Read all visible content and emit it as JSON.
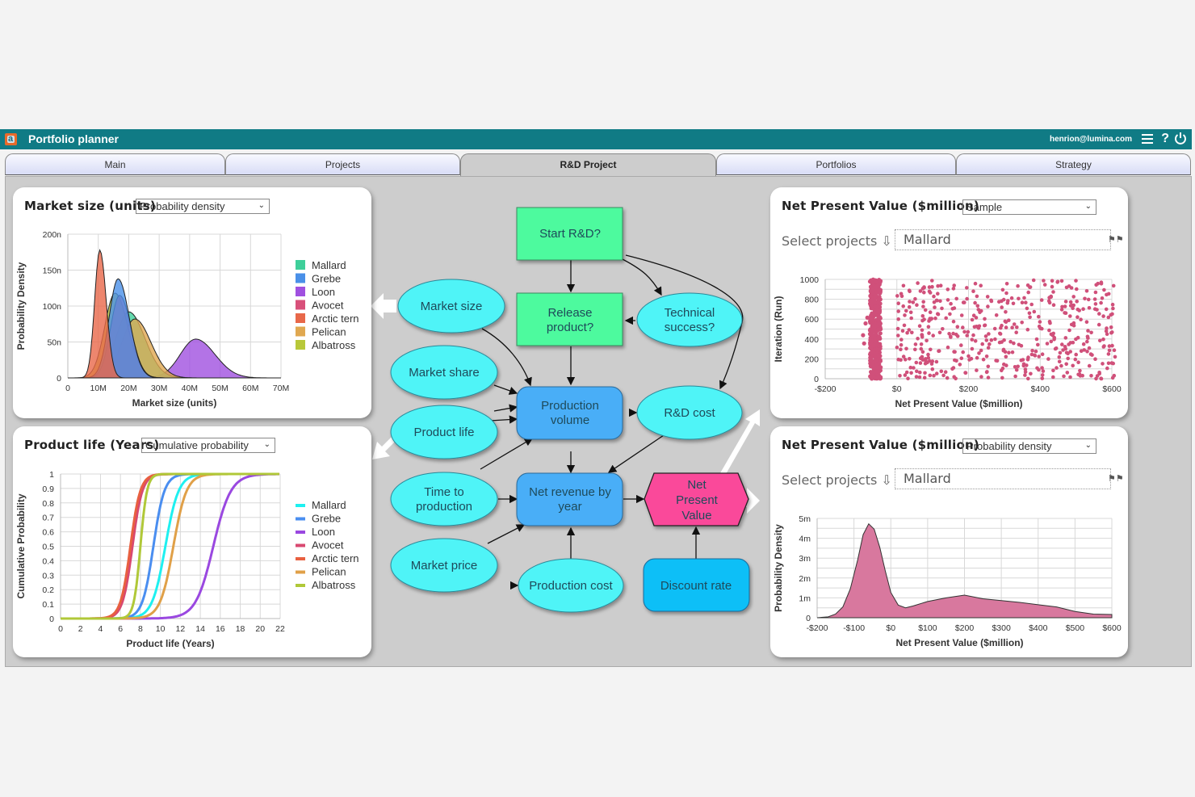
{
  "app": {
    "title": "Portfolio planner",
    "user": "henrion@lumina.com",
    "icons": [
      "menu-icon",
      "help-icon",
      "power-icon"
    ]
  },
  "tabs": [
    {
      "label": "Main",
      "active": false
    },
    {
      "label": "Projects",
      "active": false
    },
    {
      "label": "R&D Project",
      "active": true
    },
    {
      "label": "Portfolios",
      "active": false
    },
    {
      "label": "Strategy",
      "active": false
    }
  ],
  "panels": {
    "market_size": {
      "title": "Market size (units)",
      "view": "Probability density"
    },
    "product_life": {
      "title": "Product life (Years)",
      "view": "Cumulative probability"
    },
    "npv_sample": {
      "title": "Net Present Value ($million)",
      "view": "Sample",
      "select_label": "Select projects",
      "selected": "Mallard"
    },
    "npv_density": {
      "title": "Net Present Value ($million)",
      "view": "Probability density",
      "select_label": "Select projects",
      "selected": "Mallard"
    }
  },
  "diagram": {
    "nodes": [
      {
        "id": "start_rd",
        "label": "Start R&D?",
        "shape": "decision",
        "color": "#4dfa9e"
      },
      {
        "id": "release",
        "label": "Release product?",
        "shape": "decision",
        "color": "#4dfa9e"
      },
      {
        "id": "tech_success",
        "label": "Technical success?",
        "shape": "chance",
        "color": "#4ff4f7"
      },
      {
        "id": "market_size",
        "label": "Market size",
        "shape": "chance",
        "color": "#4ff4f7"
      },
      {
        "id": "market_share",
        "label": "Market share",
        "shape": "chance",
        "color": "#4ff4f7"
      },
      {
        "id": "product_life",
        "label": "Product life",
        "shape": "chance",
        "color": "#4ff4f7"
      },
      {
        "id": "time_to_prod",
        "label": "Time to production",
        "shape": "chance",
        "color": "#4ff4f7"
      },
      {
        "id": "market_price",
        "label": "Market price",
        "shape": "chance",
        "color": "#4ff4f7"
      },
      {
        "id": "prod_volume",
        "label": "Production volume",
        "shape": "variable",
        "color": "#4aaef7"
      },
      {
        "id": "rd_cost",
        "label": "R&D cost",
        "shape": "chance",
        "color": "#4ff4f7"
      },
      {
        "id": "net_revenue",
        "label": "Net revenue by year",
        "shape": "variable",
        "color": "#4aaef7"
      },
      {
        "id": "npv",
        "label": "Net Present Value",
        "shape": "objective",
        "color": "#fa4a9a"
      },
      {
        "id": "prod_cost",
        "label": "Production cost",
        "shape": "chance",
        "color": "#4ff4f7"
      },
      {
        "id": "discount_rate",
        "label": "Discount rate",
        "shape": "constant",
        "color": "#0fbff7"
      }
    ]
  },
  "chart_data": [
    {
      "type": "area",
      "title": "Market size (units)",
      "xlabel": "Market size (units)",
      "ylabel": "Probability Density",
      "x_ticks": [
        "0",
        "10M",
        "20M",
        "30M",
        "40M",
        "50M",
        "60M",
        "70M"
      ],
      "y_ticks": [
        "0",
        "50n",
        "100n",
        "150n",
        "200n"
      ],
      "xlim": [
        0,
        70000000
      ],
      "ylim": [
        0,
        200
      ],
      "grid": true,
      "legend_position": "right",
      "series": [
        {
          "name": "Mallard",
          "color": "#3ecf9a",
          "peak_x_M": 20,
          "peak_y_n": 92,
          "sd_M": 5
        },
        {
          "name": "Grebe",
          "color": "#4a90e8",
          "peak_x_M": 16.5,
          "peak_y_n": 138,
          "sd_M": 3.5
        },
        {
          "name": "Loon",
          "color": "#a050e0",
          "peak_x_M": 42,
          "peak_y_n": 54,
          "sd_M": 6
        },
        {
          "name": "Avocet",
          "color": "#d8507a",
          "peak_x_M": 17,
          "peak_y_n": 115,
          "sd_M": 3.5
        },
        {
          "name": "Arctic tern",
          "color": "#e8684a",
          "peak_x_M": 10.5,
          "peak_y_n": 178,
          "sd_M": 2
        },
        {
          "name": "Pelican",
          "color": "#e0a850",
          "peak_x_M": 22,
          "peak_y_n": 82,
          "sd_M": 5
        },
        {
          "name": "Albatross",
          "color": "#b8c83a",
          "peak_x_M": 15.5,
          "peak_y_n": 118,
          "sd_M": 4
        }
      ]
    },
    {
      "type": "line",
      "title": "Product life (Years)",
      "xlabel": "Product life (Years)",
      "ylabel": "Cumulative Probability",
      "x_ticks": [
        "0",
        "2",
        "4",
        "6",
        "8",
        "10",
        "12",
        "14",
        "16",
        "18",
        "20",
        "22"
      ],
      "y_ticks": [
        "0",
        "0.1",
        "0.2",
        "0.3",
        "0.4",
        "0.5",
        "0.6",
        "0.7",
        "0.8",
        "0.9",
        "1"
      ],
      "xlim": [
        0,
        22
      ],
      "ylim": [
        0,
        1
      ],
      "grid": true,
      "legend_position": "right",
      "series": [
        {
          "name": "Mallard",
          "color": "#1ef0f0",
          "median": 10.5,
          "spread": 1.2
        },
        {
          "name": "Grebe",
          "color": "#4a8ef0",
          "median": 9.3,
          "spread": 1.0
        },
        {
          "name": "Loon",
          "color": "#9a48e0",
          "median": 15.3,
          "spread": 1.6
        },
        {
          "name": "Avocet",
          "color": "#d84870",
          "median": 7.2,
          "spread": 0.9
        },
        {
          "name": "Arctic tern",
          "color": "#e86040",
          "median": 7.0,
          "spread": 0.9
        },
        {
          "name": "Pelican",
          "color": "#e0a048",
          "median": 11.3,
          "spread": 1.2
        },
        {
          "name": "Albatross",
          "color": "#b0c838",
          "median": 8.0,
          "spread": 0.6
        }
      ]
    },
    {
      "type": "scatter",
      "title": "Net Present Value ($million)",
      "xlabel": "Net Present Value ($million)",
      "ylabel": "Iteration (Run)",
      "x_ticks": [
        "-$200",
        "$0",
        "$200",
        "$400",
        "$600"
      ],
      "y_ticks": [
        "0",
        "200",
        "400",
        "600",
        "800",
        "1000"
      ],
      "xlim": [
        -200,
        600
      ],
      "ylim": [
        0,
        1000
      ],
      "grid": true,
      "series": [
        {
          "name": "Mallard",
          "color": "#d0507a",
          "cluster": {
            "x_center": -60,
            "x_width": 15,
            "fraction": 0.45
          },
          "spread": {
            "x_min": 0,
            "x_max": 610,
            "fraction": 0.55
          }
        }
      ]
    },
    {
      "type": "area",
      "title": "Net Present Value ($million)",
      "xlabel": "Net Present Value ($million)",
      "ylabel": "Probability Density",
      "x_ticks": [
        "-$200",
        "-$100",
        "$0",
        "$100",
        "$200",
        "$300",
        "$400",
        "$500",
        "$600"
      ],
      "y_ticks": [
        "0",
        "1m",
        "2m",
        "3m",
        "4m",
        "5m"
      ],
      "xlim": [
        -200,
        600
      ],
      "ylim": [
        0,
        5.5
      ],
      "grid": true,
      "series": [
        {
          "name": "Mallard",
          "color": "#d8789e",
          "x": [
            -200,
            -170,
            -150,
            -130,
            -110,
            -90,
            -75,
            -60,
            -45,
            -30,
            -15,
            0,
            20,
            40,
            60,
            100,
            150,
            200,
            250,
            300,
            350,
            400,
            450,
            500,
            550,
            600
          ],
          "y": [
            0,
            0.05,
            0.2,
            0.6,
            1.6,
            3.2,
            4.6,
            5.2,
            4.9,
            3.9,
            2.6,
            1.4,
            0.7,
            0.55,
            0.65,
            0.9,
            1.1,
            1.25,
            1.05,
            0.95,
            0.85,
            0.72,
            0.6,
            0.35,
            0.2,
            0.18
          ]
        }
      ]
    }
  ]
}
